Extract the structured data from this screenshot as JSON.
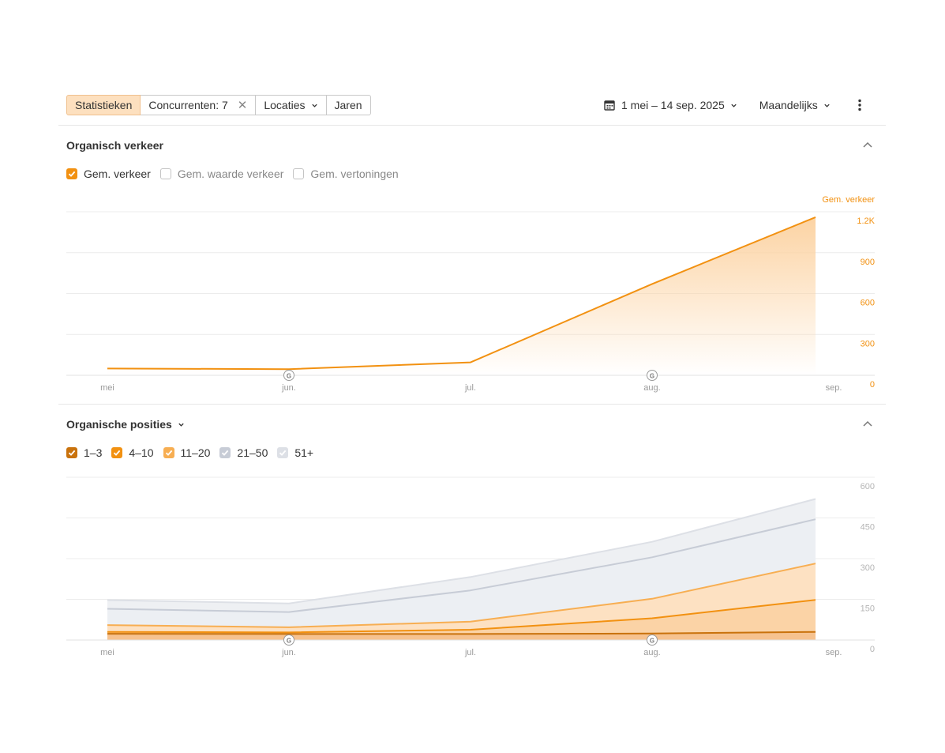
{
  "toolbar": {
    "tabs": [
      {
        "label": "Statistieken",
        "active": true
      },
      {
        "label": "Concurrenten: 7"
      },
      {
        "label": "Locaties"
      },
      {
        "label": "Jaren"
      }
    ],
    "date_range": "1 mei – 14 sep. 2025",
    "granularity": "Maandelijks"
  },
  "traffic_section": {
    "title": "Organisch verkeer",
    "legend": [
      {
        "label": "Gem. verkeer",
        "checked": true,
        "color": "#f29111"
      },
      {
        "label": "Gem. waarde verkeer",
        "checked": false
      },
      {
        "label": "Gem. vertoningen",
        "checked": false
      }
    ]
  },
  "positions_section": {
    "title": "Organische posities",
    "legend": [
      {
        "label": "1–3",
        "checked": true,
        "color": "#c9720c"
      },
      {
        "label": "4–10",
        "checked": true,
        "color": "#f29111"
      },
      {
        "label": "11–20",
        "checked": true,
        "color": "#f7ae52"
      },
      {
        "label": "21–50",
        "checked": true,
        "color": "#c7ccd6"
      },
      {
        "label": "51+",
        "checked": true,
        "color": "#dde0e6"
      }
    ]
  },
  "chart_data": [
    {
      "type": "area",
      "axis_label": "Gem. verkeer",
      "categories": [
        "mei",
        "jun.",
        "jul.",
        "aug.",
        "sep."
      ],
      "x": [
        0,
        1,
        2,
        3,
        3.9
      ],
      "series": [
        {
          "name": "Gem. verkeer",
          "values": [
            50,
            45,
            95,
            670,
            1160
          ],
          "color": "#f29111"
        }
      ],
      "ylim": [
        0,
        1200
      ],
      "yticks": [
        0,
        300,
        600,
        900,
        1200
      ],
      "ytick_labels": [
        "0",
        "300",
        "600",
        "900",
        "1.2K"
      ],
      "markers": [
        {
          "x": 1,
          "label": "G"
        },
        {
          "x": 3,
          "label": "G"
        }
      ],
      "grid": true,
      "axis_color": "#f29111"
    },
    {
      "type": "area",
      "categories": [
        "mei",
        "jun.",
        "jul.",
        "aug.",
        "sep."
      ],
      "x": [
        0,
        1,
        2,
        3,
        3.9
      ],
      "series": [
        {
          "name": "51+",
          "values": [
            147,
            135,
            232,
            362,
            520
          ],
          "color": "#dde0e6",
          "fill": "#eef0f3"
        },
        {
          "name": "21–50",
          "values": [
            115,
            103,
            183,
            305,
            445
          ],
          "color": "#c7ccd6",
          "fill": "#eceff3"
        },
        {
          "name": "11–20",
          "values": [
            55,
            47,
            68,
            152,
            282
          ],
          "color": "#f7ae52",
          "fill": "#fde1c2"
        },
        {
          "name": "4–10",
          "values": [
            30,
            28,
            38,
            80,
            148
          ],
          "color": "#f29111",
          "fill": "#fbd3a6"
        },
        {
          "name": "1–3",
          "values": [
            23,
            22,
            22,
            24,
            30
          ],
          "color": "#c9720c",
          "fill": "#f6c28f"
        }
      ],
      "ylim": [
        0,
        600
      ],
      "yticks": [
        0,
        150,
        300,
        450,
        600
      ],
      "ytick_labels": [
        "0",
        "150",
        "300",
        "450",
        "600"
      ],
      "markers": [
        {
          "x": 1,
          "label": "G"
        },
        {
          "x": 3,
          "label": "G"
        }
      ],
      "grid": true,
      "axis_color": "#b5b5b5"
    }
  ]
}
